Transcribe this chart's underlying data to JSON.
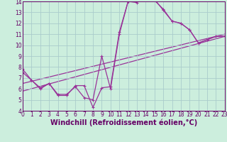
{
  "xlabel": "Windchill (Refroidissement éolien,°C)",
  "bg_color": "#cceedd",
  "line_color": "#993399",
  "grid_color": "#aacccc",
  "xlim": [
    0,
    23
  ],
  "ylim": [
    4,
    14
  ],
  "xticks": [
    0,
    1,
    2,
    3,
    4,
    5,
    6,
    7,
    8,
    9,
    10,
    11,
    12,
    13,
    14,
    15,
    16,
    17,
    18,
    19,
    20,
    21,
    22,
    23
  ],
  "yticks": [
    4,
    5,
    6,
    7,
    8,
    9,
    10,
    11,
    12,
    13,
    14
  ],
  "line1_x": [
    0,
    1,
    2,
    3,
    4,
    5,
    6,
    7,
    8,
    9,
    10,
    11,
    12,
    13,
    14,
    15,
    16,
    17,
    18,
    19,
    20,
    21,
    22,
    23
  ],
  "line1_y": [
    7.8,
    6.8,
    6.1,
    6.5,
    5.4,
    5.4,
    6.3,
    6.3,
    4.3,
    6.1,
    6.2,
    11.2,
    14.0,
    13.9,
    14.6,
    14.2,
    13.2,
    12.2,
    12.0,
    11.4,
    10.2,
    10.5,
    10.8,
    10.8
  ],
  "line2_x": [
    0,
    1,
    2,
    3,
    4,
    5,
    6,
    7,
    8,
    9,
    10,
    11,
    12,
    13,
    14,
    15,
    16,
    17,
    18,
    19,
    20,
    21,
    22,
    23
  ],
  "line2_y": [
    7.5,
    6.8,
    6.0,
    6.5,
    5.5,
    5.5,
    6.2,
    5.2,
    5.0,
    9.0,
    6.0,
    11.0,
    14.0,
    14.0,
    14.5,
    14.1,
    13.3,
    12.2,
    12.0,
    11.4,
    10.2,
    10.5,
    10.8,
    10.8
  ],
  "trend1_x": [
    0,
    23
  ],
  "trend1_y": [
    6.5,
    11.0
  ],
  "trend2_x": [
    0,
    23
  ],
  "trend2_y": [
    5.8,
    10.8
  ],
  "font_color": "#660066",
  "tick_fontsize": 5.5,
  "label_fontsize": 7.0
}
